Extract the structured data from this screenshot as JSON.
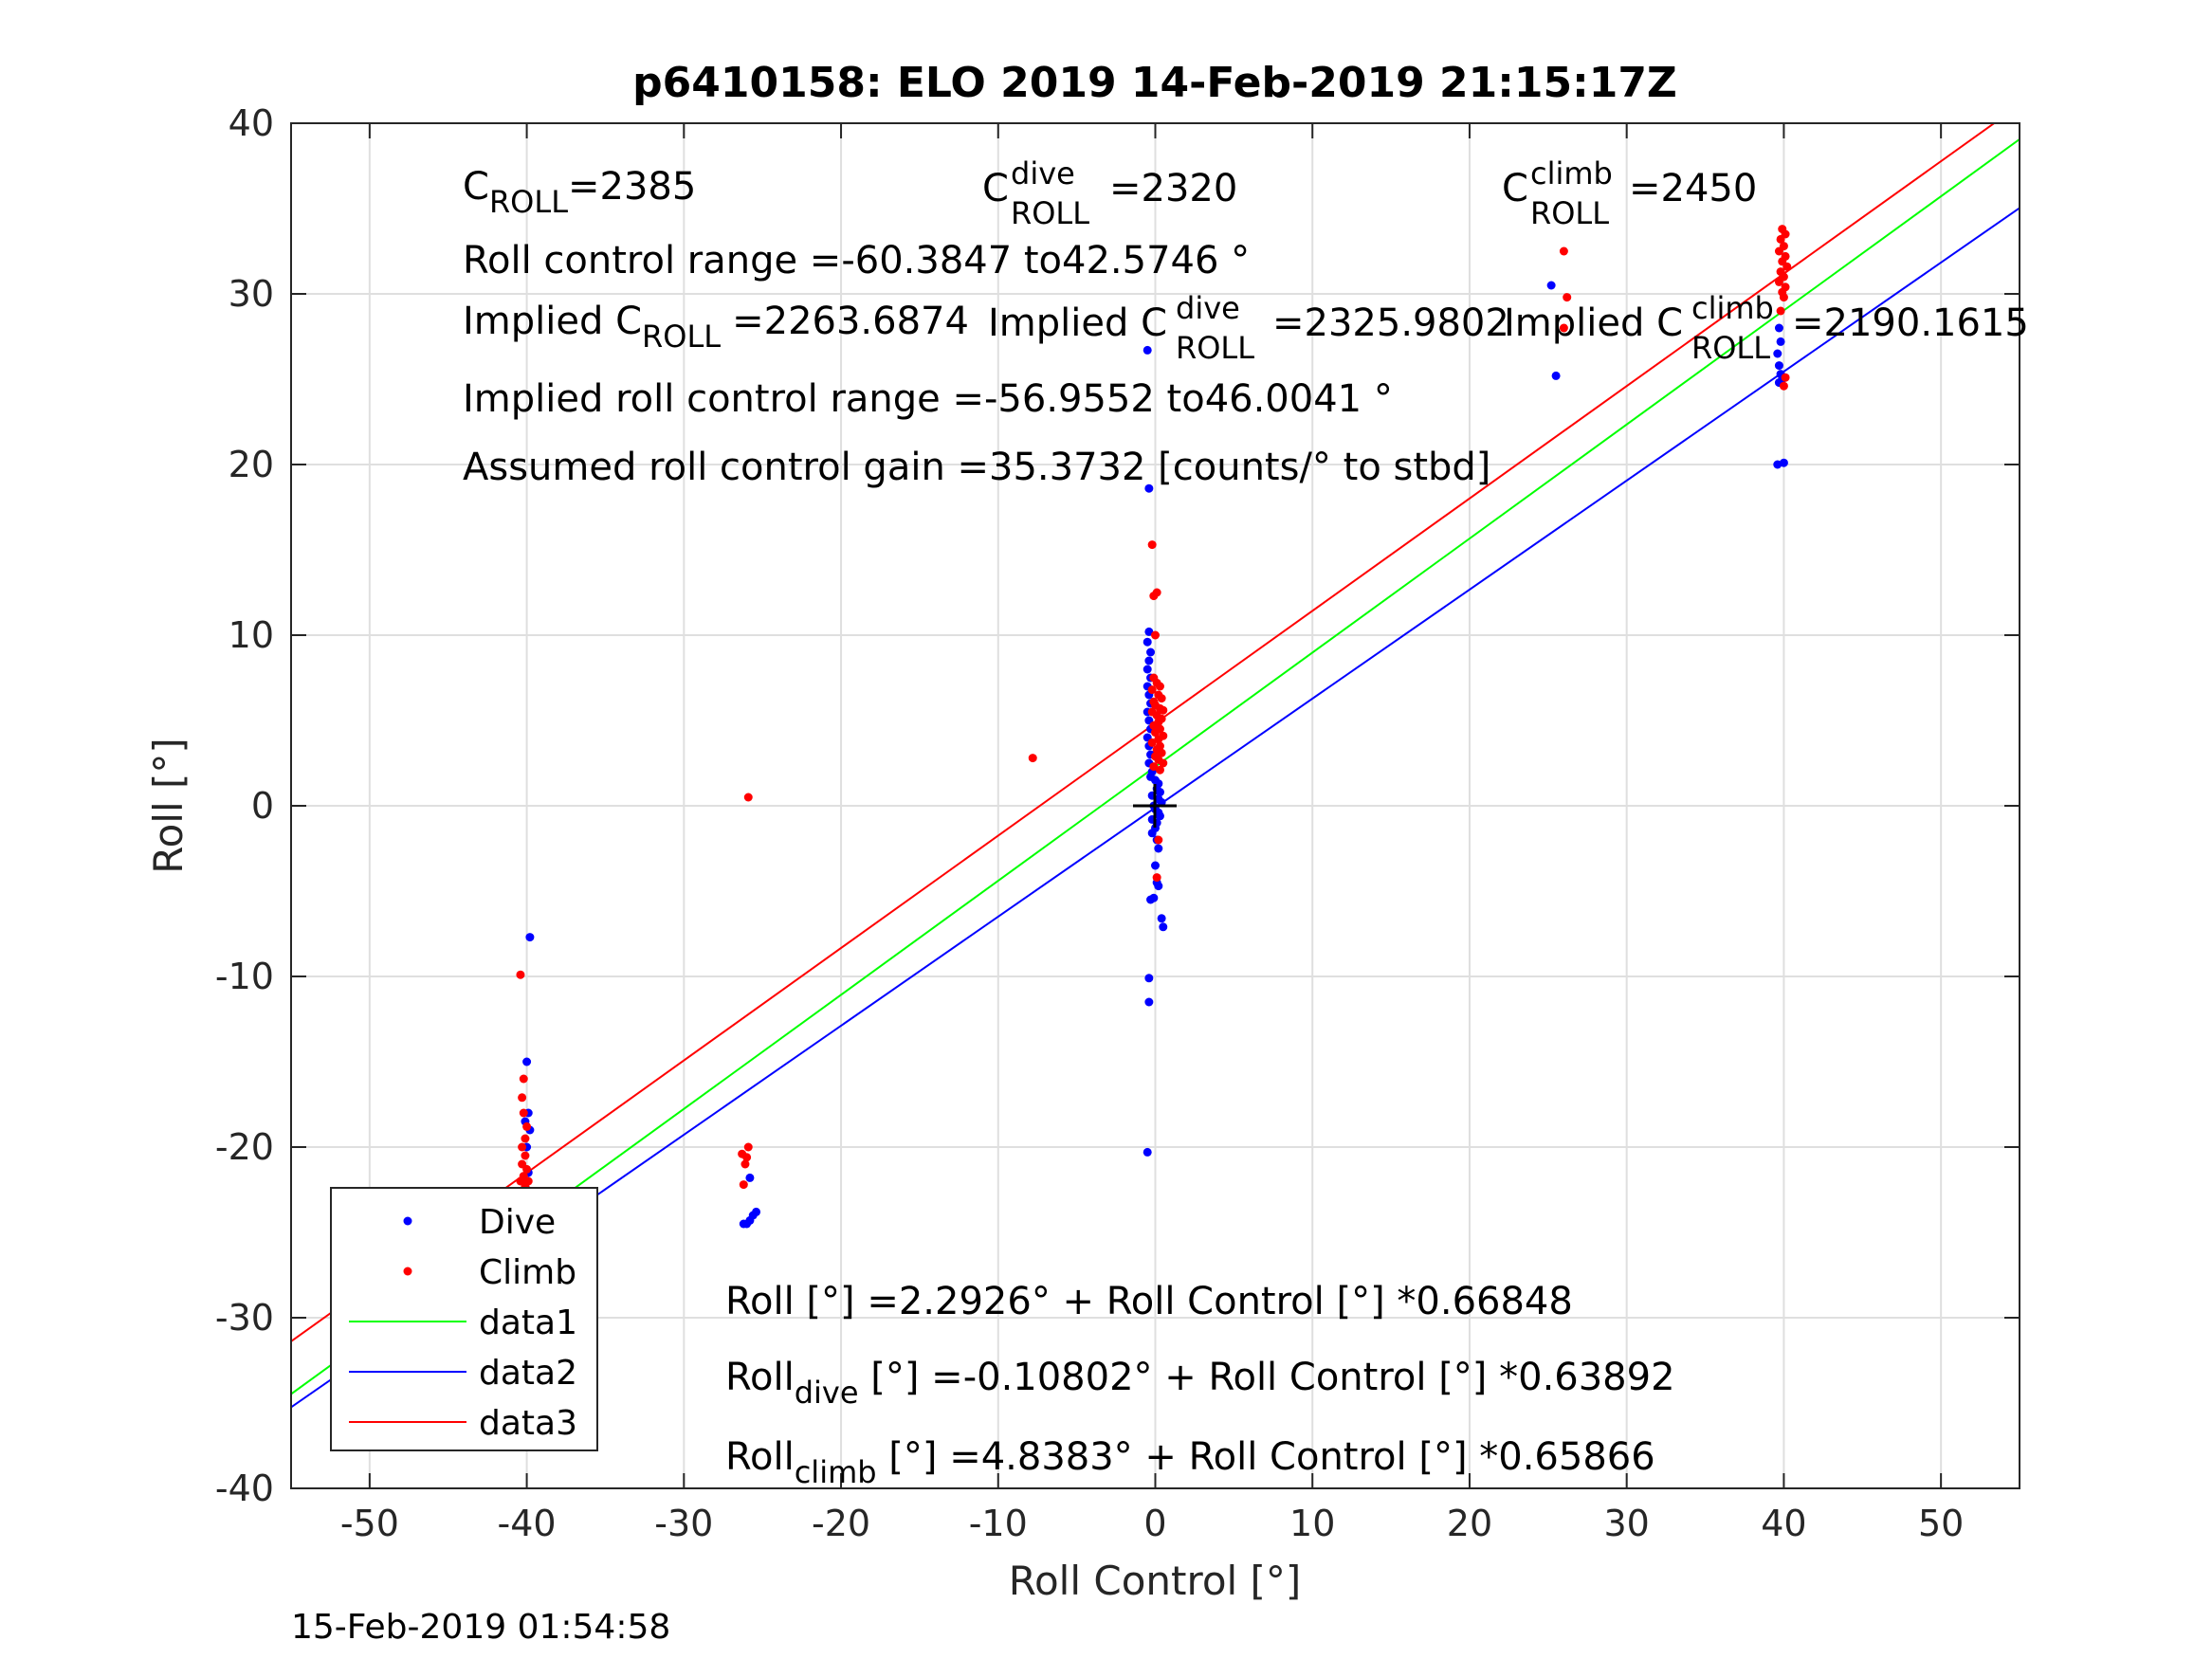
{
  "chart_data": {
    "type": "scatter",
    "title": "p6410158: ELO 2019 14-Feb-2019 21:15:17Z",
    "xlabel": "Roll Control [°]",
    "ylabel": "Roll [°]",
    "xlim": [
      -55,
      55
    ],
    "ylim": [
      -40,
      40
    ],
    "xticks": [
      -50,
      -40,
      -30,
      -20,
      -10,
      0,
      10,
      20,
      30,
      40,
      50
    ],
    "yticks": [
      -40,
      -30,
      -20,
      -10,
      0,
      10,
      20,
      30,
      40
    ],
    "grid": true,
    "legend_position": "bottom-left",
    "timestamp": "15-Feb-2019 01:54:58",
    "annotations": {
      "c_roll": {
        "base": "C",
        "sub": "ROLL",
        "value": "=2385"
      },
      "c_roll_dive": {
        "base": "C",
        "sup": "dive",
        "sub": "ROLL",
        "value": "=2320"
      },
      "c_roll_climb": {
        "base": "C",
        "sup": "climb",
        "sub": "ROLL",
        "value": "=2450"
      },
      "roll_control_range": "Roll control range =-60.3847 to42.5746 °",
      "implied_c_roll": {
        "base": "Implied C",
        "sub": "ROLL",
        "value": "=2263.6874"
      },
      "implied_c_roll_dive": {
        "base": "Implied C",
        "sup": "dive",
        "sub": "ROLL",
        "value": "=2325.9802"
      },
      "implied_c_roll_climb": {
        "base": "Implied C",
        "sup": "climb",
        "sub": "ROLL",
        "value": "=2190.1615"
      },
      "implied_range": "Implied roll control range =-56.9552 to46.0041 °",
      "gain": "Assumed roll control gain =35.3732 [counts/° to stbd]",
      "fit_all": "Roll [°] =2.2926° + Roll Control [°] *0.66848",
      "fit_dive": {
        "base": "Roll",
        "sub": "dive",
        "rest": " [°] =-0.10802° + Roll Control [°] *0.63892"
      },
      "fit_climb": {
        "base": "Roll",
        "sub": "climb",
        "rest": " [°] =4.8383° + Roll Control [°] *0.65866"
      }
    },
    "lines": [
      {
        "name": "data1",
        "color": "#00ff00",
        "intercept": 2.2926,
        "slope": 0.66848
      },
      {
        "name": "data2",
        "color": "#0000ff",
        "intercept": -0.10802,
        "slope": 0.63892
      },
      {
        "name": "data3",
        "color": "#ff0000",
        "intercept": 4.8383,
        "slope": 0.65866
      }
    ],
    "series": [
      {
        "name": "Dive",
        "color": "#0000ff",
        "points": [
          [
            -39.8,
            -7.7
          ],
          [
            -40.0,
            -15.0
          ],
          [
            -39.9,
            -18.0
          ],
          [
            -40.1,
            -18.5
          ],
          [
            -39.8,
            -19.0
          ],
          [
            -40.0,
            -20.0
          ],
          [
            -39.9,
            -21.5
          ],
          [
            -40.0,
            -22.5
          ],
          [
            -40.0,
            -23.5
          ],
          [
            -40.1,
            -24.5
          ],
          [
            -39.9,
            -25.0
          ],
          [
            -40.0,
            -25.3
          ],
          [
            -40.1,
            -25.6
          ],
          [
            -39.9,
            -25.9
          ],
          [
            -40.2,
            -26.2
          ],
          [
            -40.0,
            -26.5
          ],
          [
            -39.8,
            -26.8
          ],
          [
            -40.1,
            -27.1
          ],
          [
            -40.0,
            -27.5
          ],
          [
            -39.8,
            -25.8
          ],
          [
            -39.7,
            -26.0
          ],
          [
            -26.0,
            -24.5
          ],
          [
            -25.8,
            -24.3
          ],
          [
            -25.6,
            -24.0
          ],
          [
            -25.4,
            -23.8
          ],
          [
            -25.8,
            -21.8
          ],
          [
            -26.2,
            -24.5
          ],
          [
            -0.5,
            26.7
          ],
          [
            -0.4,
            18.6
          ],
          [
            -0.4,
            10.2
          ],
          [
            -0.5,
            9.6
          ],
          [
            -0.3,
            9.0
          ],
          [
            -0.4,
            8.5
          ],
          [
            -0.5,
            8.0
          ],
          [
            -0.3,
            7.5
          ],
          [
            -0.5,
            7.0
          ],
          [
            -0.4,
            6.5
          ],
          [
            -0.3,
            6.0
          ],
          [
            -0.5,
            5.5
          ],
          [
            -0.4,
            5.0
          ],
          [
            -0.3,
            4.5
          ],
          [
            -0.5,
            4.0
          ],
          [
            -0.4,
            3.5
          ],
          [
            -0.3,
            3.0
          ],
          [
            -0.4,
            2.5
          ],
          [
            -0.2,
            2.0
          ],
          [
            -0.3,
            1.7
          ],
          [
            0.0,
            1.5
          ],
          [
            0.2,
            1.3
          ],
          [
            0.1,
            1.0
          ],
          [
            0.3,
            0.8
          ],
          [
            -0.2,
            0.6
          ],
          [
            0.2,
            0.4
          ],
          [
            0.4,
            0.2
          ],
          [
            -0.1,
            0.0
          ],
          [
            0.0,
            -0.2
          ],
          [
            0.2,
            -0.4
          ],
          [
            0.3,
            -0.6
          ],
          [
            -0.2,
            -0.8
          ],
          [
            0.1,
            -1.0
          ],
          [
            0.0,
            -1.3
          ],
          [
            -0.2,
            -1.6
          ],
          [
            0.1,
            -2.0
          ],
          [
            0.2,
            -2.5
          ],
          [
            0.0,
            -3.5
          ],
          [
            0.1,
            -4.5
          ],
          [
            0.2,
            -4.7
          ],
          [
            -0.1,
            -5.4
          ],
          [
            -0.3,
            -5.5
          ],
          [
            0.4,
            -6.6
          ],
          [
            0.5,
            -7.1
          ],
          [
            -0.4,
            -10.1
          ],
          [
            -0.4,
            -11.5
          ],
          [
            -0.5,
            -20.3
          ],
          [
            25.2,
            30.5
          ],
          [
            25.5,
            25.2
          ],
          [
            39.7,
            28.0
          ],
          [
            39.8,
            27.2
          ],
          [
            39.6,
            26.5
          ],
          [
            39.7,
            25.8
          ],
          [
            39.8,
            25.3
          ],
          [
            39.9,
            25.0
          ],
          [
            39.7,
            24.8
          ],
          [
            39.6,
            20.0
          ],
          [
            40.0,
            20.1
          ]
        ]
      },
      {
        "name": "Climb",
        "color": "#ff0000",
        "points": [
          [
            -40.4,
            -9.9
          ],
          [
            -40.2,
            -16.0
          ],
          [
            -40.3,
            -17.1
          ],
          [
            -40.2,
            -18.0
          ],
          [
            -40.0,
            -18.8
          ],
          [
            -40.1,
            -19.5
          ],
          [
            -40.3,
            -20.0
          ],
          [
            -40.1,
            -20.5
          ],
          [
            -40.3,
            -21.0
          ],
          [
            -40.0,
            -21.3
          ],
          [
            -40.2,
            -21.7
          ],
          [
            -40.4,
            -22.0
          ],
          [
            -40.1,
            -22.3
          ],
          [
            -40.3,
            -22.6
          ],
          [
            -40.0,
            -22.9
          ],
          [
            -40.2,
            -23.2
          ],
          [
            -39.9,
            -22.0
          ],
          [
            -25.9,
            0.5
          ],
          [
            -26.3,
            -20.4
          ],
          [
            -25.9,
            -20.0
          ],
          [
            -26.1,
            -21.0
          ],
          [
            -26.0,
            -20.6
          ],
          [
            -26.2,
            -22.2
          ],
          [
            -7.8,
            2.8
          ],
          [
            -0.2,
            15.3
          ],
          [
            -0.1,
            12.3
          ],
          [
            0.1,
            12.5
          ],
          [
            0.0,
            10.0
          ],
          [
            -0.1,
            7.5
          ],
          [
            0.1,
            7.2
          ],
          [
            0.3,
            7.0
          ],
          [
            -0.2,
            6.8
          ],
          [
            0.2,
            6.5
          ],
          [
            0.4,
            6.3
          ],
          [
            -0.1,
            6.1
          ],
          [
            0.0,
            5.9
          ],
          [
            0.3,
            5.7
          ],
          [
            0.5,
            5.6
          ],
          [
            -0.2,
            5.5
          ],
          [
            0.1,
            5.3
          ],
          [
            0.4,
            5.1
          ],
          [
            0.2,
            4.9
          ],
          [
            -0.1,
            4.7
          ],
          [
            0.3,
            4.5
          ],
          [
            0.0,
            4.3
          ],
          [
            0.5,
            4.1
          ],
          [
            0.2,
            3.9
          ],
          [
            -0.2,
            3.7
          ],
          [
            0.3,
            3.5
          ],
          [
            0.1,
            3.3
          ],
          [
            0.4,
            3.1
          ],
          [
            0.0,
            2.9
          ],
          [
            0.2,
            2.7
          ],
          [
            0.5,
            2.5
          ],
          [
            -0.1,
            2.3
          ],
          [
            0.3,
            2.1
          ],
          [
            0.2,
            -2.0
          ],
          [
            0.1,
            -4.2
          ],
          [
            26.0,
            32.5
          ],
          [
            26.2,
            29.8
          ],
          [
            26.0,
            28.0
          ],
          [
            39.9,
            33.8
          ],
          [
            40.1,
            33.5
          ],
          [
            39.8,
            33.2
          ],
          [
            40.0,
            32.8
          ],
          [
            39.7,
            32.5
          ],
          [
            40.1,
            32.2
          ],
          [
            39.9,
            31.9
          ],
          [
            40.2,
            31.6
          ],
          [
            39.8,
            31.3
          ],
          [
            40.0,
            31.0
          ],
          [
            39.7,
            30.7
          ],
          [
            40.1,
            30.4
          ],
          [
            39.9,
            30.1
          ],
          [
            40.0,
            29.8
          ],
          [
            39.8,
            29.0
          ],
          [
            40.0,
            24.6
          ],
          [
            40.1,
            25.1
          ]
        ]
      }
    ],
    "legend": [
      {
        "label": "Dive",
        "kind": "marker",
        "color": "#0000ff"
      },
      {
        "label": "Climb",
        "kind": "marker",
        "color": "#ff0000"
      },
      {
        "label": "data1",
        "kind": "line",
        "color": "#00ff00"
      },
      {
        "label": "data2",
        "kind": "line",
        "color": "#0000ff"
      },
      {
        "label": "data3",
        "kind": "line",
        "color": "#ff0000"
      }
    ]
  }
}
